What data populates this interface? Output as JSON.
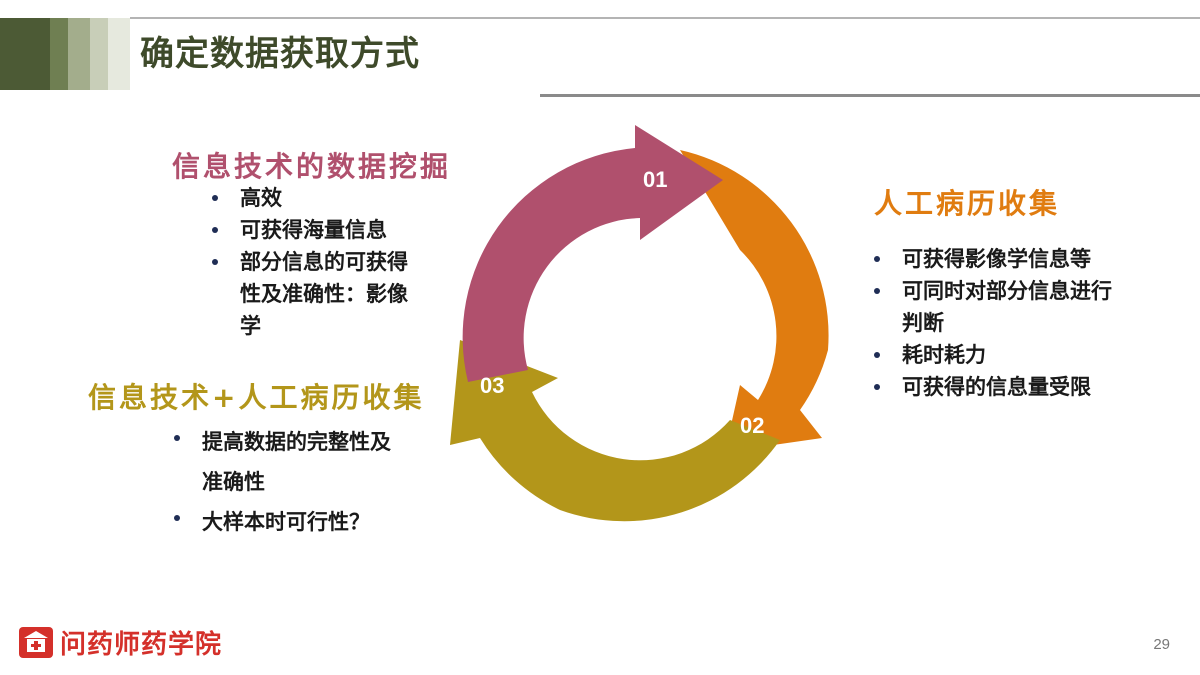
{
  "title": "确定数据获取方式",
  "accent_colors": {
    "pink": "#b0506d",
    "orange": "#e07c10",
    "gold": "#b3961a",
    "title": "#3e4a2a"
  },
  "sections": {
    "top_left": {
      "heading": "信息技术的数据挖掘",
      "bullets": [
        "高效",
        "可获得海量信息",
        "部分信息的可获得性及准确性：影像学"
      ]
    },
    "right": {
      "heading": "人工病历收集",
      "bullets": [
        "可获得影像学信息等",
        "可同时对部分信息进行判断",
        "耗时耗力",
        "可获得的信息量受限"
      ]
    },
    "bottom_left": {
      "heading": "信息技术+人工病历收集",
      "bullets": [
        "提高数据的完整性及准确性",
        "大样本时可行性？"
      ]
    }
  },
  "cycle": {
    "labels": [
      "01",
      "02",
      "03"
    ]
  },
  "footer": {
    "brand": "问药师药学院",
    "logo_icon": "pharmacy-academy-logo-icon",
    "page_number": "29"
  }
}
